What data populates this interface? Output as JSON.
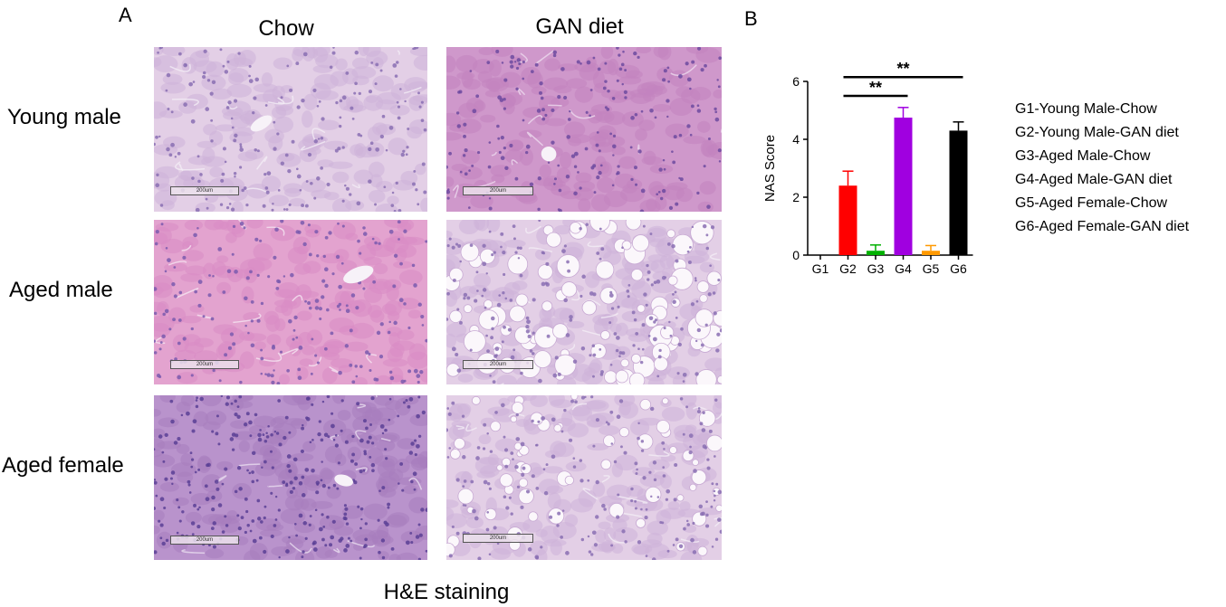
{
  "panel_a": {
    "letter": "A",
    "columns": [
      "Chow",
      "GAN diet"
    ],
    "rows": [
      "Young male",
      "Aged male",
      "Aged female"
    ],
    "caption": "H&E staining",
    "scale_bar_label": "200um"
  },
  "panel_b": {
    "letter": "B",
    "legend": [
      "G1-Young Male-Chow",
      "G2-Young Male-GAN diet",
      "G3-Aged Male-Chow",
      "G4-Aged Male-GAN diet",
      "G5-Aged Female-Chow",
      "G6-Aged Female-GAN diet"
    ]
  },
  "chart_data": {
    "type": "bar",
    "title": "",
    "xlabel": "",
    "ylabel": "NAS Score",
    "categories": [
      "G1",
      "G2",
      "G3",
      "G4",
      "G5",
      "G6"
    ],
    "values": [
      0,
      2.4,
      0.15,
      4.75,
      0.15,
      4.3
    ],
    "errors": [
      0,
      0.5,
      0.2,
      0.35,
      0.18,
      0.3
    ],
    "colors": [
      "#000000",
      "#ff0000",
      "#00b000",
      "#a000e0",
      "#ff9900",
      "#000000"
    ],
    "ylim": [
      0,
      6
    ],
    "yticks": [
      0,
      2,
      4,
      6
    ],
    "significance": [
      {
        "from": "G2",
        "to": "G4",
        "label": "**"
      },
      {
        "from": "G2",
        "to": "G6",
        "label": "**"
      }
    ]
  }
}
